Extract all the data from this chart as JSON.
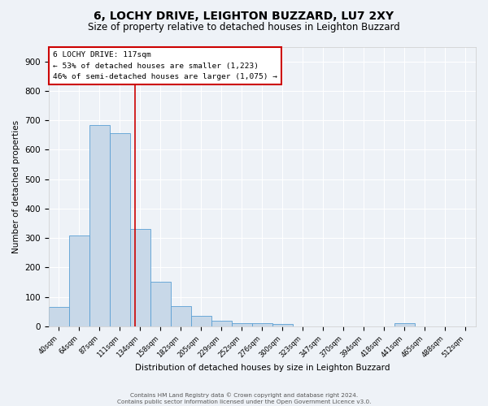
{
  "title1": "6, LOCHY DRIVE, LEIGHTON BUZZARD, LU7 2XY",
  "title2": "Size of property relative to detached houses in Leighton Buzzard",
  "xlabel": "Distribution of detached houses by size in Leighton Buzzard",
  "ylabel": "Number of detached properties",
  "categories": [
    "40sqm",
    "64sqm",
    "87sqm",
    "111sqm",
    "134sqm",
    "158sqm",
    "182sqm",
    "205sqm",
    "229sqm",
    "252sqm",
    "276sqm",
    "300sqm",
    "323sqm",
    "347sqm",
    "370sqm",
    "394sqm",
    "418sqm",
    "441sqm",
    "465sqm",
    "488sqm",
    "512sqm"
  ],
  "values": [
    65,
    310,
    685,
    655,
    330,
    152,
    68,
    35,
    18,
    12,
    12,
    8,
    0,
    0,
    0,
    0,
    0,
    10,
    0,
    0,
    0
  ],
  "bar_color": "#c8d8e8",
  "bar_edgecolor": "#5a9fd4",
  "annotation_line1": "6 LOCHY DRIVE: 117sqm",
  "annotation_line2": "← 53% of detached houses are smaller (1,223)",
  "annotation_line3": "46% of semi-detached houses are larger (1,075) →",
  "ylim": [
    0,
    950
  ],
  "yticks": [
    0,
    100,
    200,
    300,
    400,
    500,
    600,
    700,
    800,
    900
  ],
  "footer1": "Contains HM Land Registry data © Crown copyright and database right 2024.",
  "footer2": "Contains public sector information licensed under the Open Government Licence v3.0.",
  "bg_color": "#eef2f7",
  "grid_color": "#ffffff",
  "title1_fontsize": 10,
  "title2_fontsize": 8.5,
  "red_line_x": 3.76
}
